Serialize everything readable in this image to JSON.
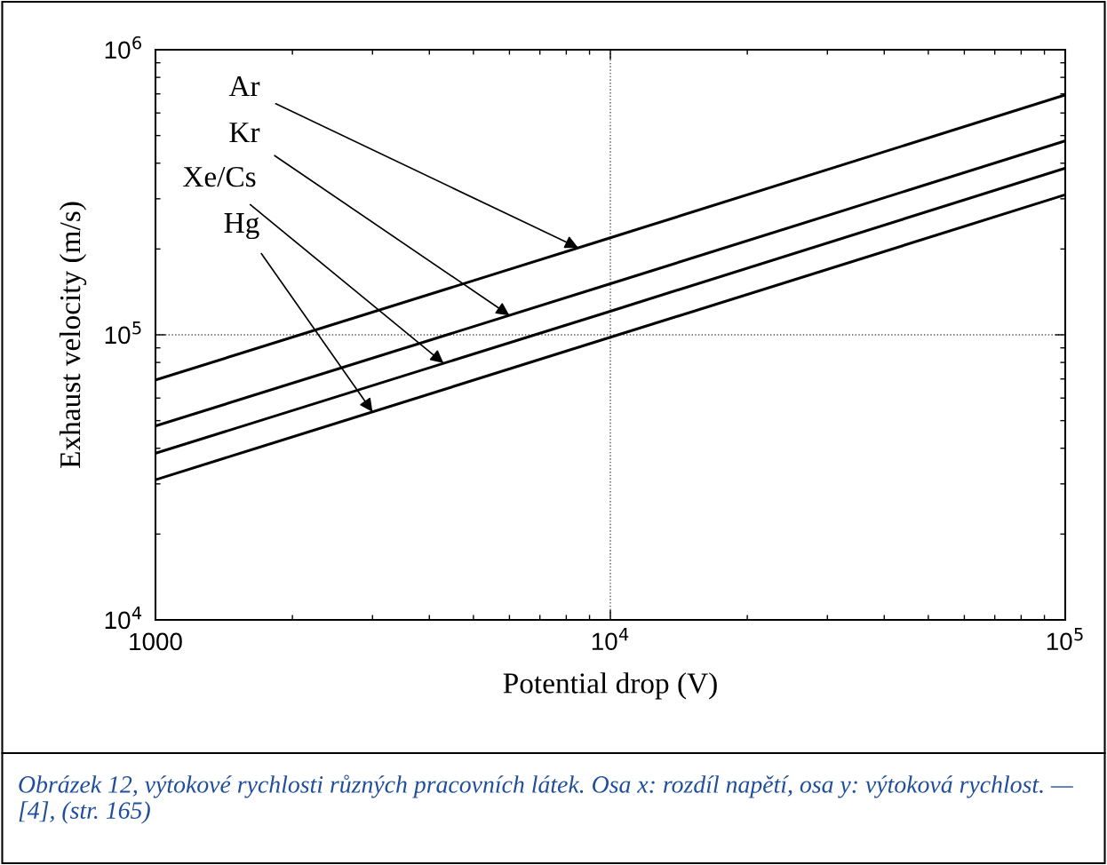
{
  "chart_data": {
    "type": "line",
    "xlabel": "Potential drop (V)",
    "ylabel": "Exhaust velocity (m/s)",
    "log": "xy",
    "grid": true,
    "line_style": "solid",
    "marker": "none",
    "xlim": [
      1000,
      100000
    ],
    "ylim": [
      10000,
      1000000
    ],
    "xticks": [
      1000,
      {
        "value": 10000,
        "label": "10$^{4}$"
      },
      {
        "value": 100000,
        "label": "10$^{5}$"
      }
    ],
    "yticks": [
      {
        "value": 10000,
        "label": "10$^{4}$"
      },
      {
        "value": 100000,
        "label": "10$^{5}$"
      },
      {
        "value": 1000000,
        "label": "10$^{6}$"
      }
    ],
    "x": [
      1000,
      10000,
      100000
    ],
    "series": [
      {
        "color": "#000000",
        "values": [
          69400,
          219000,
          694000
        ]
      },
      {
        "color": "#000000",
        "values": [
          47900,
          151000,
          479000
        ]
      },
      {
        "color": "#000000",
        "values": [
          38400,
          121000,
          384000
        ]
      },
      {
        "color": "#000000",
        "values": [
          31000,
          98000,
          310000
        ]
      }
    ],
    "annotations": [
      {
        "text": "Ar",
        "x": 8500,
        "y": 202000
      },
      {
        "text": "Kr",
        "x": 6000,
        "y": 117000
      },
      {
        "text": "Xe/Cs",
        "x": 4300,
        "y": 79500
      },
      {
        "text": "Hg",
        "x": 3000,
        "y": 53700
      },
      "Obrázek 12, výtokové rychlosti různých pracovních látek. Osa x: rozdíl napětí, osa y: výtoková rychlost. — [4], (str. 165)"
    ]
  }
}
